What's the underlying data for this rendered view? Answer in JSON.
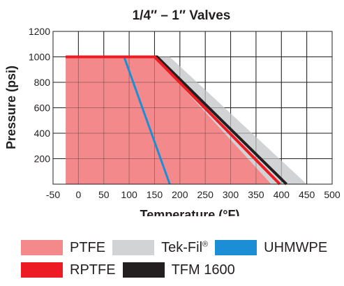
{
  "chart_data": {
    "type": "area",
    "title": "1/4″ – 1″ Valves",
    "xlabel": "Temperature (°F)",
    "ylabel": "Pressure (psi)",
    "xlim": [
      -50,
      500
    ],
    "ylim": [
      0,
      1200
    ],
    "xticks": [
      "-50",
      "0",
      "50",
      "100",
      "150",
      "200",
      "250",
      "300",
      "350",
      "400",
      "450",
      "500"
    ],
    "yticks": [
      "200",
      "400",
      "600",
      "800",
      "1000",
      "1200"
    ],
    "grid": true,
    "legend_position": "bottom",
    "series": [
      {
        "name": "Tek-Fil",
        "kind": "area",
        "color": "#d1d3d4",
        "x": [
          -25,
          180,
          450
        ],
        "y": [
          1000,
          1000,
          0
        ]
      },
      {
        "name": "PTFE",
        "kind": "area",
        "color": "#f4898c",
        "x": [
          -25,
          150,
          380
        ],
        "y": [
          1000,
          1000,
          0
        ]
      },
      {
        "name": "UHMWPE",
        "kind": "line",
        "color": "#1b8ed6",
        "x": [
          90,
          180
        ],
        "y": [
          1000,
          0
        ]
      },
      {
        "name": "TFM 1600",
        "kind": "line",
        "color": "#231f20",
        "x": [
          -25,
          155,
          410
        ],
        "y": [
          1000,
          1000,
          0
        ]
      },
      {
        "name": "RPTFE",
        "kind": "line",
        "color": "#ed1c24",
        "x": [
          -25,
          150,
          397
        ],
        "y": [
          1000,
          1000,
          0
        ]
      }
    ]
  },
  "legend": {
    "items": [
      {
        "label": "PTFE",
        "color": "#f4898c"
      },
      {
        "label": "Tek-Fil",
        "mark": "®",
        "color": "#d1d3d4"
      },
      {
        "label": "UHMWPE",
        "color": "#1b8ed6"
      },
      {
        "label": "RPTFE",
        "color": "#ed1c24"
      },
      {
        "label": "TFM 1600",
        "color": "#231f20"
      }
    ]
  }
}
